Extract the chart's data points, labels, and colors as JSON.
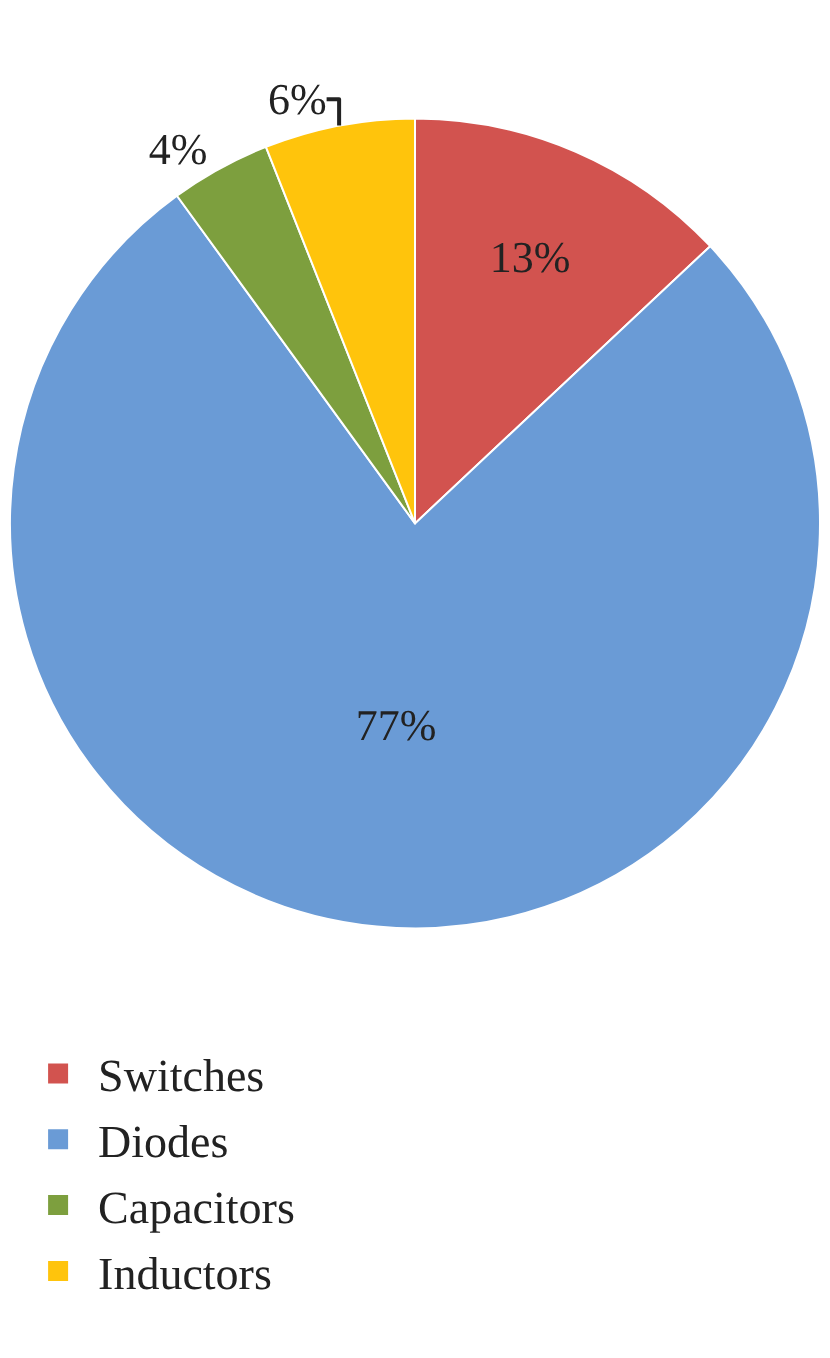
{
  "chart_data": {
    "type": "pie",
    "categories": [
      "Switches",
      "Diodes",
      "Capacitors",
      "Inductors"
    ],
    "values": [
      13,
      77,
      4,
      6
    ],
    "value_labels": [
      "13%",
      "77%",
      "4%",
      "6%"
    ],
    "colors": [
      "#d2534f",
      "#6a9bd6",
      "#7d9f3e",
      "#ffc40c"
    ],
    "legend": "bottom"
  }
}
